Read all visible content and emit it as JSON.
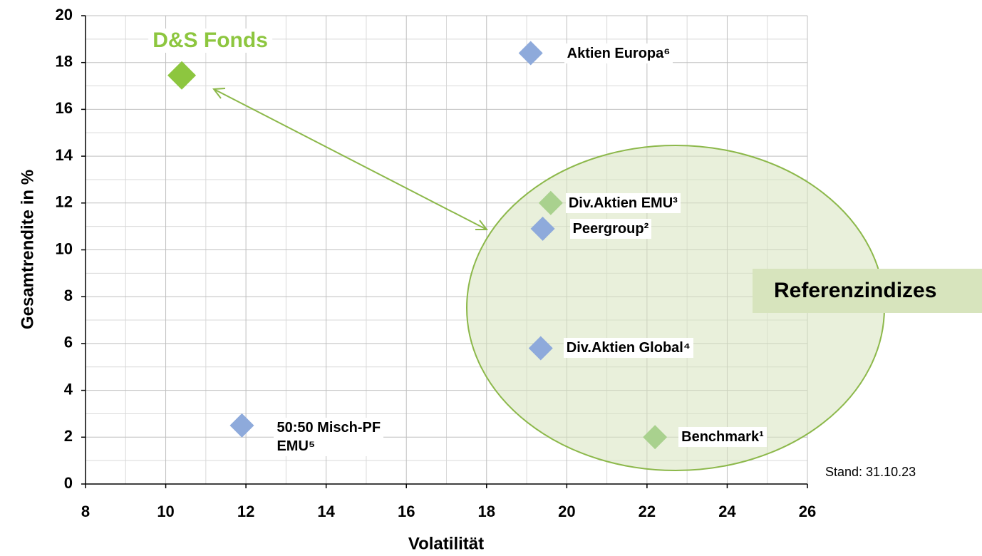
{
  "chart_data": {
    "type": "scatter",
    "xlabel": "Volatilität",
    "ylabel": "Gesamtrendite in %",
    "xlim": [
      8,
      26
    ],
    "xticks": [
      8,
      10,
      12,
      14,
      16,
      18,
      20,
      22,
      24,
      26
    ],
    "ylim": [
      0,
      20
    ],
    "yticks": [
      0,
      2,
      4,
      6,
      8,
      10,
      12,
      14,
      16,
      18,
      20
    ],
    "grid": true,
    "minor_grid": true,
    "series": [
      {
        "name": "D&S Fonds",
        "color": "#8dc63f",
        "x": [
          10.4
        ],
        "values": [
          17.45
        ]
      },
      {
        "name": "Aktien Europa⁶",
        "color": "#8eaadb",
        "x": [
          19.1
        ],
        "values": [
          18.4
        ]
      },
      {
        "name": "Div.Aktien EMU³",
        "color": "#a9d18e",
        "x": [
          19.6
        ],
        "values": [
          12.0
        ]
      },
      {
        "name": "Peergroup²",
        "color": "#8eaadb",
        "x": [
          19.4
        ],
        "values": [
          10.9
        ]
      },
      {
        "name": "Div.Aktien Global⁴",
        "color": "#8eaadb",
        "x": [
          19.35
        ],
        "values": [
          5.8
        ]
      },
      {
        "name": "50:50 Misch-PF\nEMU⁵",
        "color": "#8eaadb",
        "x": [
          11.9
        ],
        "values": [
          2.5
        ]
      },
      {
        "name": "Benchmark¹",
        "color": "#a9d18e",
        "x": [
          22.2
        ],
        "values": [
          2.0
        ]
      }
    ],
    "annotations": [
      "Referenzindizes",
      "Stand: 31.10.23"
    ]
  }
}
